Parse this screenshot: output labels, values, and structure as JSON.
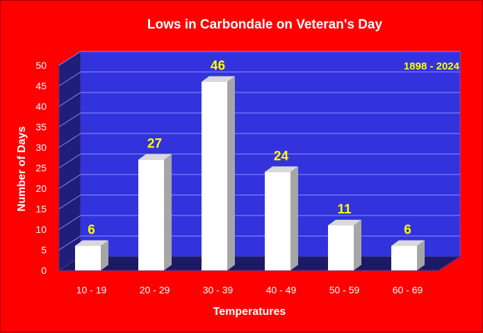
{
  "chart_data": {
    "type": "bar",
    "title": "Lows in Carbondale on Veteran's Day",
    "annotation": "1898 - 2024",
    "xlabel": "Temperatures",
    "ylabel": "Number of Days",
    "categories": [
      "10 - 19",
      "20 - 29",
      "30 - 39",
      "40 - 49",
      "50 - 59",
      "60 - 69"
    ],
    "values": [
      6,
      27,
      46,
      24,
      11,
      6
    ],
    "ylim": [
      0,
      50
    ],
    "yticks": [
      0,
      5,
      10,
      15,
      20,
      25,
      30,
      35,
      40,
      45,
      50
    ],
    "grid": true,
    "legend": "none",
    "colors": {
      "background": "#ff0000",
      "plot_back": "#3333dd",
      "plot_side": "#1f1f7a",
      "plot_floor": "#1a1a66",
      "bar_front": "#ffffff",
      "bar_side": "#a6a6a6",
      "bar_top": "#d9d9d9",
      "data_label": "#ffff00",
      "annotation": "#ffff00",
      "text": "#ffffff",
      "gridline": "#8c8cff"
    }
  }
}
